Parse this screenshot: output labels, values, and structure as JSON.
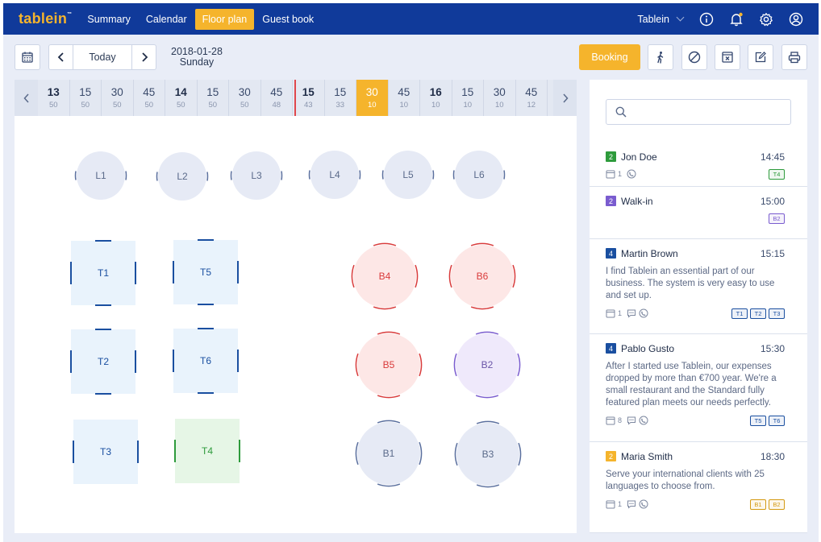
{
  "app": {
    "brand": "tablein",
    "brand_mark": "™"
  },
  "nav": {
    "items": [
      {
        "label": "Summary",
        "active": false
      },
      {
        "label": "Calendar",
        "active": false
      },
      {
        "label": "Floor plan",
        "active": true
      },
      {
        "label": "Guest book",
        "active": false
      }
    ]
  },
  "topbar": {
    "user": "Tablein",
    "icons": [
      "info-icon",
      "bell-icon",
      "gear-icon",
      "user-icon"
    ]
  },
  "toolbar": {
    "today_label": "Today",
    "date": "2018-01-28",
    "weekday": "Sunday",
    "booking_label": "Booking",
    "icons": [
      "calendar-icon",
      "walk-in-icon",
      "block-icon",
      "remove-icon",
      "edit-icon",
      "print-icon"
    ]
  },
  "timeline": {
    "slots": [
      {
        "time": "13",
        "count": "50",
        "hour": true
      },
      {
        "time": "15",
        "count": "50"
      },
      {
        "time": "30",
        "count": "50"
      },
      {
        "time": "45",
        "count": "50"
      },
      {
        "time": "14",
        "count": "50",
        "hour": true
      },
      {
        "time": "15",
        "count": "50"
      },
      {
        "time": "30",
        "count": "50"
      },
      {
        "time": "45",
        "count": "48"
      },
      {
        "time": "15",
        "count": "43",
        "hour": true
      },
      {
        "time": "15",
        "count": "33"
      },
      {
        "time": "30",
        "count": "10",
        "selected": true
      },
      {
        "time": "45",
        "count": "10"
      },
      {
        "time": "16",
        "count": "10",
        "hour": true
      },
      {
        "time": "15",
        "count": "10"
      },
      {
        "time": "30",
        "count": "10"
      },
      {
        "time": "45",
        "count": "12"
      }
    ]
  },
  "tables": [
    {
      "label": "L1",
      "shape": "round",
      "status": "free"
    },
    {
      "label": "L2",
      "shape": "round",
      "status": "free"
    },
    {
      "label": "L3",
      "shape": "round",
      "status": "free"
    },
    {
      "label": "L4",
      "shape": "round",
      "status": "free"
    },
    {
      "label": "L5",
      "shape": "round",
      "status": "free"
    },
    {
      "label": "L6",
      "shape": "round",
      "status": "free"
    },
    {
      "label": "T1",
      "shape": "square",
      "status": "reserved"
    },
    {
      "label": "T5",
      "shape": "square",
      "status": "reserved"
    },
    {
      "label": "T2",
      "shape": "square",
      "status": "reserved"
    },
    {
      "label": "T6",
      "shape": "square",
      "status": "reserved"
    },
    {
      "label": "T3",
      "shape": "square",
      "status": "reserved"
    },
    {
      "label": "T4",
      "shape": "square",
      "status": "seated"
    },
    {
      "label": "B4",
      "shape": "round",
      "status": "occupied"
    },
    {
      "label": "B6",
      "shape": "round",
      "status": "occupied"
    },
    {
      "label": "B5",
      "shape": "round",
      "status": "occupied"
    },
    {
      "label": "B2",
      "shape": "round",
      "status": "walkin"
    },
    {
      "label": "B1",
      "shape": "round",
      "status": "free"
    },
    {
      "label": "B3",
      "shape": "round",
      "status": "free"
    }
  ],
  "colors": {
    "topbar": "#103a9a",
    "accent": "#f5b42c",
    "free_fill": "#e6eaf5",
    "free_stroke": "#5a6f9e",
    "free_text": "#5a6a8a",
    "reserved_fill": "#e9f3fc",
    "reserved_stroke": "#1a4fa0",
    "reserved_text": "#1a4fa0",
    "seated_fill": "#e6f6e6",
    "seated_stroke": "#2e9b3c",
    "seated_text": "#2e9b3c",
    "occupied_fill": "#fde7e6",
    "occupied_stroke": "#d93b3b",
    "occupied_text": "#d93b3b",
    "walkin_fill": "#efe9fb",
    "walkin_stroke": "#7a5ccf",
    "walkin_text": "#6a55a8"
  },
  "search": {
    "placeholder": "",
    "value": ""
  },
  "reservations": [
    {
      "guests": "2",
      "badge_color": "#2e9b3c",
      "name": "Jon Doe",
      "time": "14:45",
      "message": "",
      "visits": "1",
      "has_note": false,
      "has_phone": true,
      "tags": [
        "T4"
      ],
      "tag_color": "#2e9b3c"
    },
    {
      "guests": "2",
      "badge_color": "#7a5ccf",
      "name": "Walk-in",
      "time": "15:00",
      "message": "",
      "visits": "",
      "has_note": false,
      "has_phone": false,
      "tags": [
        "B2"
      ],
      "tag_color": "#7a5ccf"
    },
    {
      "guests": "4",
      "badge_color": "#1a4fa0",
      "name": "Martin Brown",
      "time": "15:15",
      "message": "I find Tablein an essential part of our business. The system is very easy to use and set up.",
      "visits": "1",
      "has_note": true,
      "has_phone": true,
      "tags": [
        "T1",
        "T2",
        "T3"
      ],
      "tag_color": "#1a4fa0"
    },
    {
      "guests": "4",
      "badge_color": "#1a4fa0",
      "name": "Pablo Gusto",
      "time": "15:30",
      "message": "After I started use Tablein, our expenses dropped by more than €700 year. We're a small restaurant and the Standard fully featured plan meets our needs perfectly.",
      "visits": "8",
      "has_note": true,
      "has_phone": true,
      "tags": [
        "T5",
        "T6"
      ],
      "tag_color": "#1a4fa0"
    },
    {
      "guests": "2",
      "badge_color": "#f5b42c",
      "name": "Maria Smith",
      "time": "18:30",
      "message": "Serve your international clients with 25 languages to choose from.",
      "visits": "1",
      "has_note": true,
      "has_phone": true,
      "tags": [
        "B1",
        "B2"
      ],
      "tag_color": "#d49a12"
    }
  ]
}
